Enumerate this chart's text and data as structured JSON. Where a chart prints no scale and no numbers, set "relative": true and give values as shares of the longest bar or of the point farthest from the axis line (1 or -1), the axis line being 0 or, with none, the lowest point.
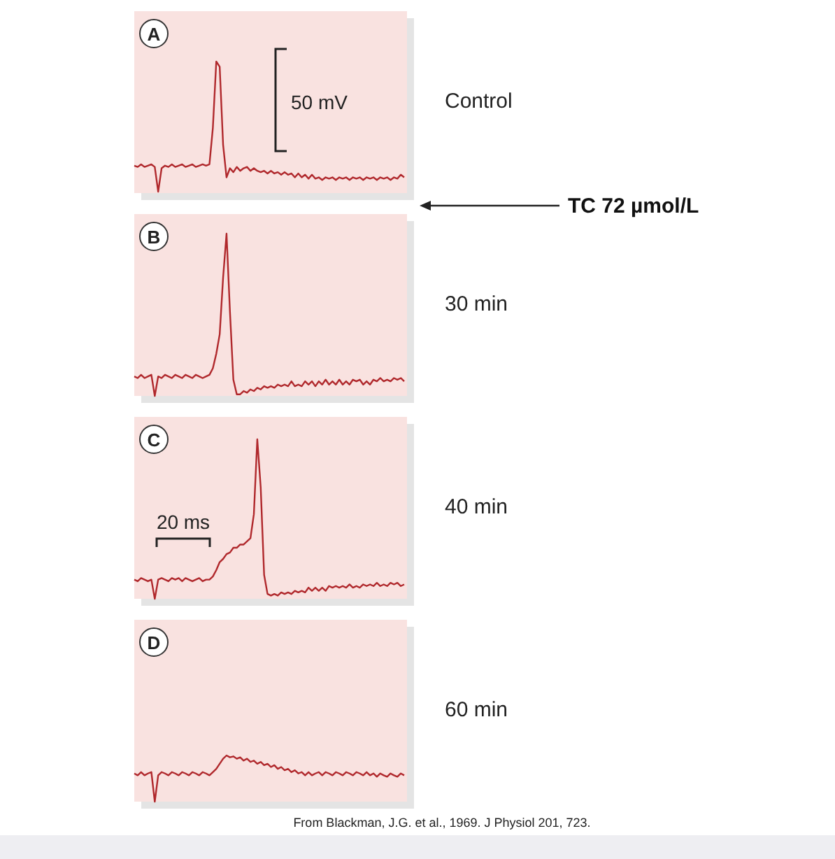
{
  "chart_data": [
    {
      "type": "line",
      "relative": true,
      "title": "A",
      "categories": [
        null,
        null,
        null,
        null,
        null,
        null,
        null,
        null,
        null,
        null,
        null,
        null,
        null,
        null,
        null,
        null,
        null,
        null,
        null,
        null,
        null,
        null,
        null,
        null,
        null,
        null,
        null,
        null,
        null,
        null,
        null,
        null,
        null,
        null,
        null,
        null,
        null,
        null,
        null,
        null,
        null,
        null,
        null,
        null,
        null,
        null,
        null,
        null,
        null,
        null,
        null,
        null,
        null,
        null,
        null,
        null,
        null,
        null,
        null,
        null,
        null,
        null,
        null,
        null,
        null,
        null,
        null,
        null,
        null,
        null,
        null,
        null,
        null,
        null,
        null,
        null,
        null,
        null,
        null,
        null
      ],
      "series": [
        {
          "name": "Control",
          "color": "#b0282c",
          "values": [
            0.2,
            0.19,
            0.21,
            0.19,
            0.2,
            0.21,
            0.19,
            0,
            0.18,
            0.2,
            0.19,
            0.21,
            0.19,
            0.2,
            0.21,
            0.19,
            0.2,
            0.21,
            0.19,
            0.2,
            0.21,
            0.2,
            0.21,
            0.49,
            1,
            0.96,
            0.36,
            0.11,
            0.18,
            0.15,
            0.19,
            0.16,
            0.18,
            0.19,
            0.16,
            0.18,
            0.16,
            0.15,
            0.16,
            0.14,
            0.16,
            0.14,
            0.15,
            0.13,
            0.15,
            0.13,
            0.14,
            0.11,
            0.14,
            0.11,
            0.13,
            0.1,
            0.13,
            0.1,
            0.11,
            0.09,
            0.11,
            0.1,
            0.11,
            0.09,
            0.11,
            0.1,
            0.11,
            0.09,
            0.11,
            0.1,
            0.11,
            0.09,
            0.11,
            0.1,
            0.11,
            0.09,
            0.11,
            0.1,
            0.11,
            0.09,
            0.11,
            0.1,
            0.13,
            0.11
          ]
        }
      ],
      "annotations": [
        "50 mV",
        "TC 72 µmol/L"
      ]
    },
    {
      "type": "line",
      "relative": true,
      "title": "B",
      "categories": [
        null,
        null,
        null,
        null,
        null,
        null,
        null,
        null,
        null,
        null,
        null,
        null,
        null,
        null,
        null,
        null,
        null,
        null,
        null,
        null,
        null,
        null,
        null,
        null,
        null,
        null,
        null,
        null,
        null,
        null,
        null,
        null,
        null,
        null,
        null,
        null,
        null,
        null,
        null,
        null,
        null,
        null,
        null,
        null,
        null,
        null,
        null,
        null,
        null,
        null,
        null,
        null,
        null,
        null,
        null,
        null,
        null,
        null,
        null,
        null,
        null,
        null,
        null,
        null,
        null,
        null,
        null,
        null,
        null,
        null,
        null,
        null,
        null,
        null,
        null,
        null,
        null,
        null,
        null,
        null
      ],
      "series": [
        {
          "name": "30 min",
          "color": "#b0282c",
          "values": [
            0.12,
            0.11,
            0.13,
            0.11,
            0.12,
            0.13,
            0,
            0.12,
            0.11,
            0.13,
            0.12,
            0.11,
            0.13,
            0.12,
            0.11,
            0.13,
            0.12,
            0.11,
            0.13,
            0.12,
            0.11,
            0.12,
            0.13,
            0.17,
            0.26,
            0.38,
            0.73,
            1,
            0.52,
            0.1,
            0.01,
            0.01,
            0.03,
            0.02,
            0.04,
            0.03,
            0.05,
            0.04,
            0.06,
            0.05,
            0.06,
            0.05,
            0.07,
            0.06,
            0.07,
            0.06,
            0.09,
            0.06,
            0.07,
            0.06,
            0.09,
            0.07,
            0.09,
            0.06,
            0.09,
            0.07,
            0.1,
            0.07,
            0.09,
            0.07,
            0.1,
            0.07,
            0.09,
            0.07,
            0.1,
            0.09,
            0.1,
            0.07,
            0.09,
            0.07,
            0.1,
            0.09,
            0.11,
            0.09,
            0.1,
            0.09,
            0.11,
            0.1,
            0.11,
            0.09
          ]
        }
      ]
    },
    {
      "type": "line",
      "relative": true,
      "title": "C",
      "categories": [
        null,
        null,
        null,
        null,
        null,
        null,
        null,
        null,
        null,
        null,
        null,
        null,
        null,
        null,
        null,
        null,
        null,
        null,
        null,
        null,
        null,
        null,
        null,
        null,
        null,
        null,
        null,
        null,
        null,
        null,
        null,
        null,
        null,
        null,
        null,
        null,
        null,
        null,
        null,
        null,
        null,
        null,
        null,
        null,
        null,
        null,
        null,
        null,
        null,
        null,
        null,
        null,
        null,
        null,
        null,
        null,
        null,
        null,
        null,
        null,
        null,
        null,
        null,
        null,
        null,
        null,
        null,
        null,
        null,
        null,
        null,
        null,
        null,
        null,
        null,
        null,
        null,
        null,
        null,
        null
      ],
      "series": [
        {
          "name": "40 min",
          "color": "#b0282c",
          "values": [
            0.12,
            0.11,
            0.13,
            0.12,
            0.11,
            0.12,
            0,
            0.12,
            0.13,
            0.12,
            0.11,
            0.13,
            0.12,
            0.13,
            0.11,
            0.13,
            0.12,
            0.11,
            0.12,
            0.13,
            0.11,
            0.12,
            0.12,
            0.14,
            0.18,
            0.23,
            0.25,
            0.28,
            0.29,
            0.32,
            0.32,
            0.34,
            0.34,
            0.36,
            0.38,
            0.53,
            1,
            0.7,
            0.15,
            0.03,
            0.02,
            0.03,
            0.02,
            0.04,
            0.03,
            0.04,
            0.03,
            0.05,
            0.04,
            0.05,
            0.04,
            0.07,
            0.05,
            0.07,
            0.05,
            0.07,
            0.05,
            0.08,
            0.07,
            0.08,
            0.07,
            0.08,
            0.07,
            0.09,
            0.07,
            0.08,
            0.07,
            0.09,
            0.08,
            0.09,
            0.08,
            0.1,
            0.08,
            0.09,
            0.08,
            0.1,
            0.09,
            0.1,
            0.08,
            0.09
          ]
        }
      ],
      "annotations": [
        "20 ms"
      ]
    },
    {
      "type": "line",
      "relative": true,
      "title": "D",
      "categories": [
        null,
        null,
        null,
        null,
        null,
        null,
        null,
        null,
        null,
        null,
        null,
        null,
        null,
        null,
        null,
        null,
        null,
        null,
        null,
        null,
        null,
        null,
        null,
        null,
        null,
        null,
        null,
        null,
        null,
        null,
        null,
        null,
        null,
        null,
        null,
        null,
        null,
        null,
        null,
        null,
        null,
        null,
        null,
        null,
        null,
        null,
        null,
        null,
        null,
        null,
        null,
        null,
        null,
        null,
        null,
        null,
        null,
        null,
        null,
        null,
        null,
        null,
        null,
        null,
        null,
        null,
        null,
        null,
        null,
        null,
        null,
        null,
        null,
        null,
        null,
        null,
        null,
        null,
        null,
        null
      ],
      "series": [
        {
          "name": "60 min",
          "color": "#b0282c",
          "values": [
            0.61,
            0.57,
            0.64,
            0.57,
            0.61,
            0.64,
            0,
            0.57,
            0.64,
            0.61,
            0.57,
            0.64,
            0.61,
            0.57,
            0.64,
            0.61,
            0.57,
            0.64,
            0.61,
            0.57,
            0.64,
            0.61,
            0.57,
            0.64,
            0.71,
            0.82,
            0.93,
            1,
            0.96,
            0.98,
            0.93,
            0.96,
            0.89,
            0.93,
            0.86,
            0.89,
            0.82,
            0.86,
            0.79,
            0.82,
            0.75,
            0.79,
            0.71,
            0.75,
            0.68,
            0.71,
            0.64,
            0.68,
            0.61,
            0.64,
            0.57,
            0.64,
            0.57,
            0.61,
            0.64,
            0.57,
            0.64,
            0.61,
            0.57,
            0.64,
            0.61,
            0.57,
            0.64,
            0.61,
            0.57,
            0.64,
            0.61,
            0.57,
            0.64,
            0.57,
            0.61,
            0.54,
            0.61,
            0.57,
            0.54,
            0.61,
            0.57,
            0.54,
            0.61,
            0.57
          ]
        }
      ],
      "annotations": [
        "From Blackman, J.G. et al., 1969. J Physiol 201, 723."
      ]
    }
  ]
}
